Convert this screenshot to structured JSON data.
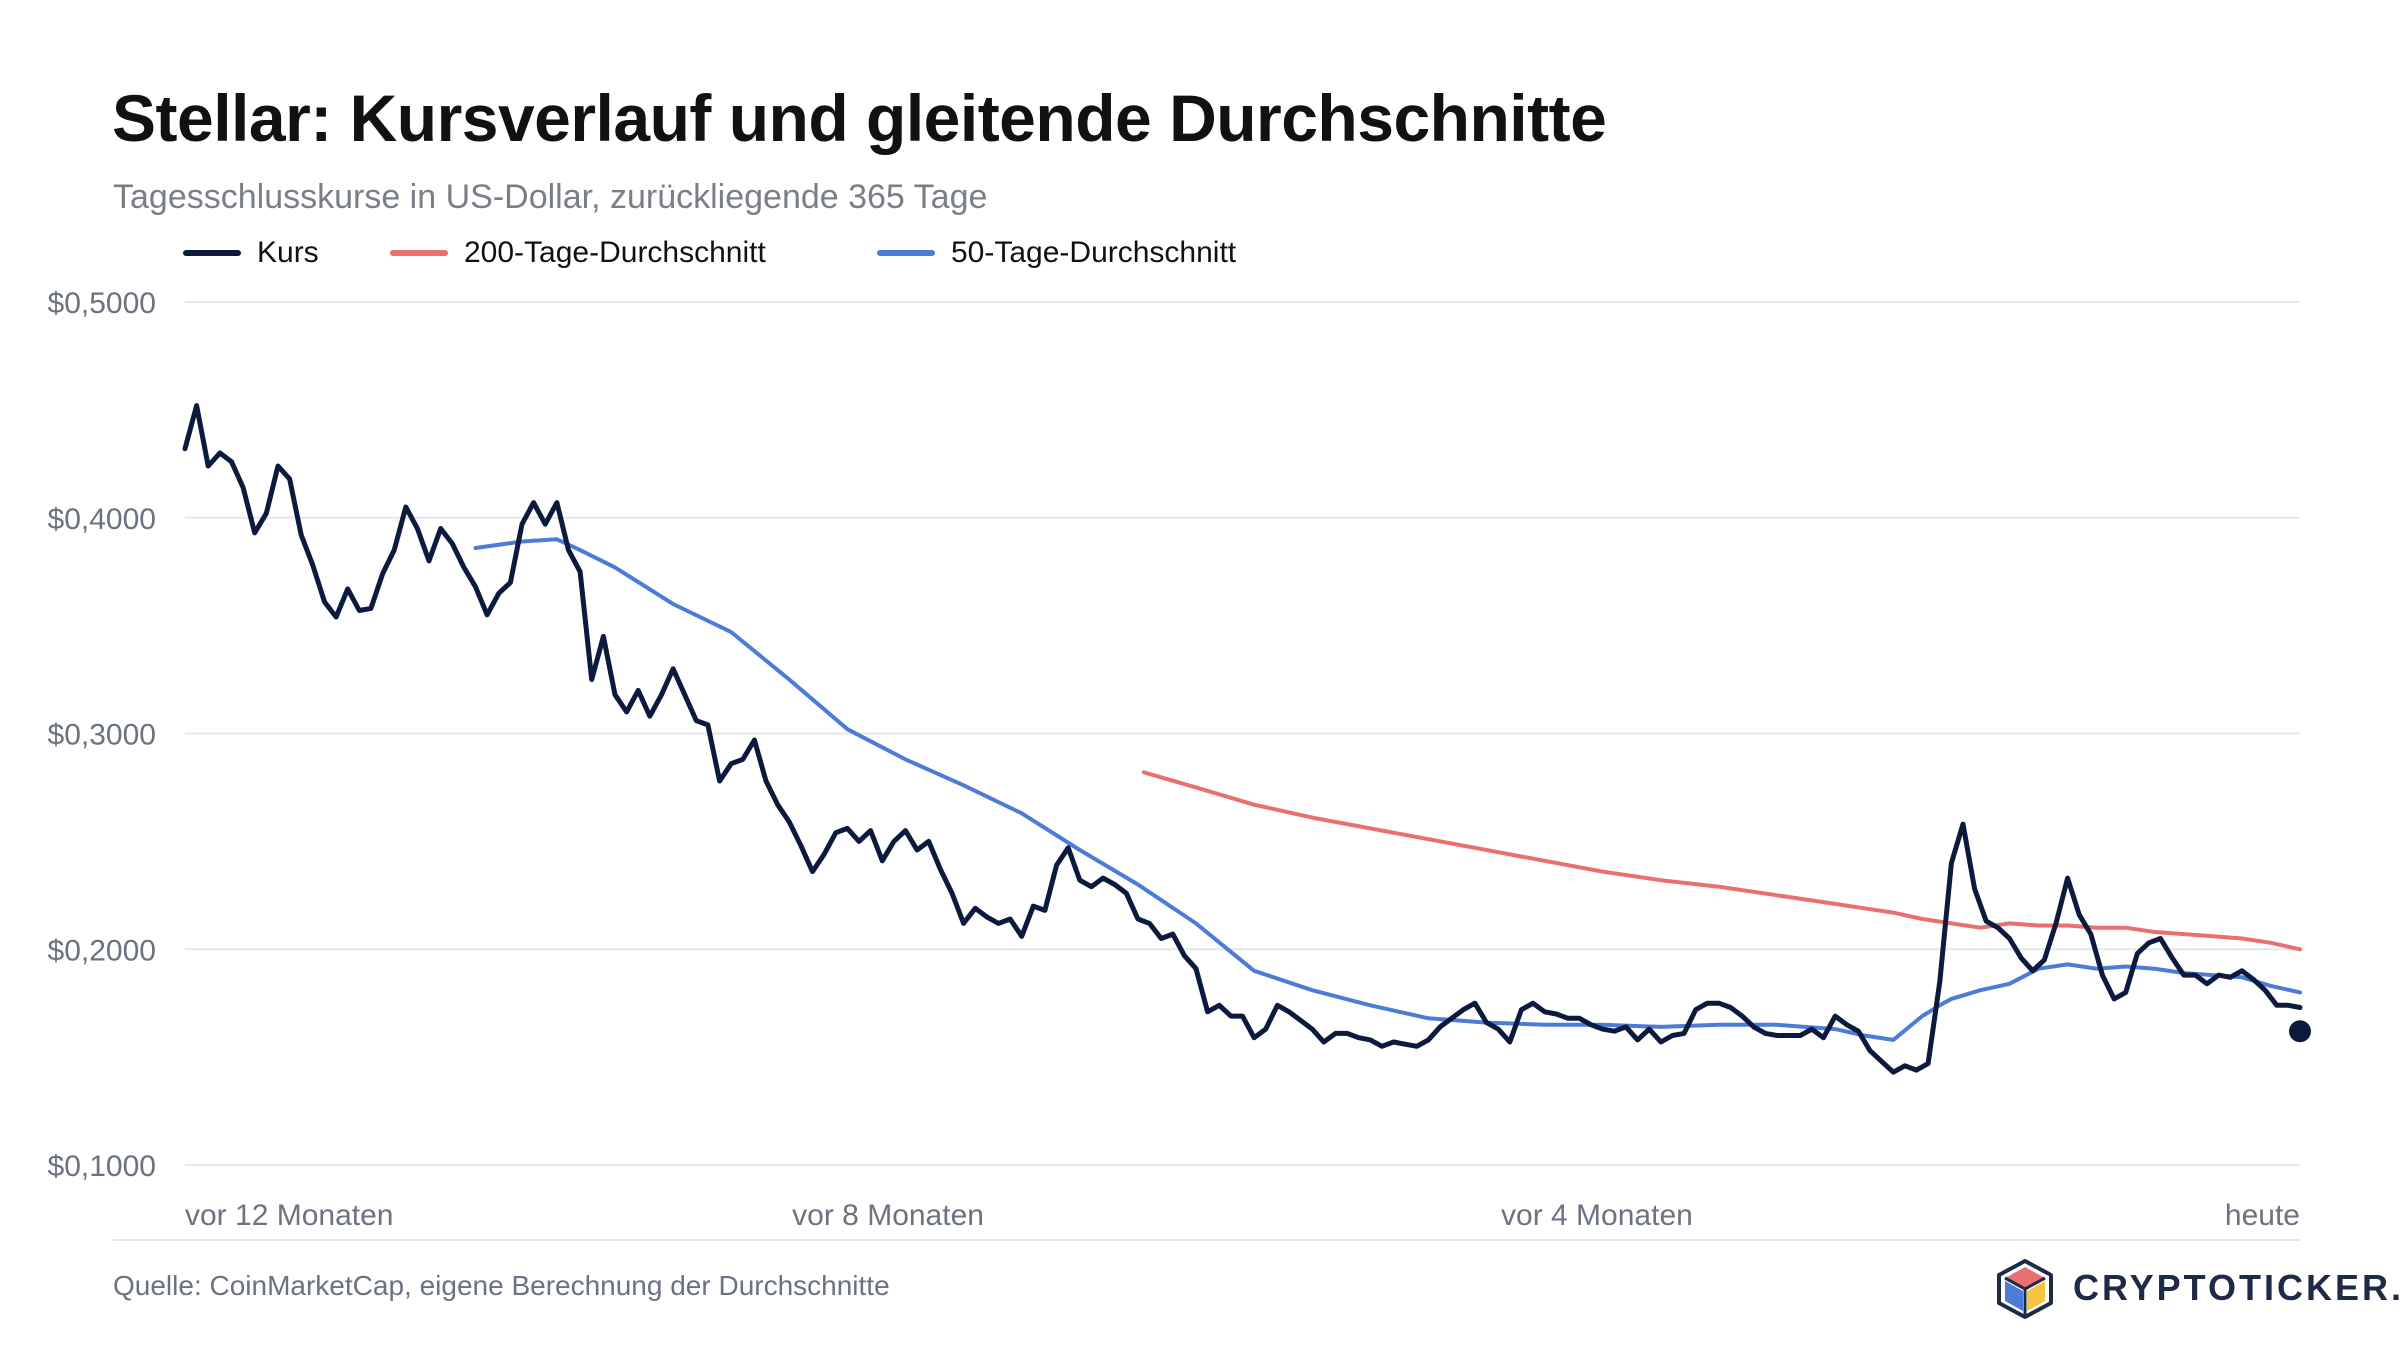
{
  "header": {
    "title": "Stellar: Kursverlauf und gleitende Durchschnitte",
    "subtitle": "Tagesschlusskurse in US-Dollar, zurückliegende 365 Tage"
  },
  "footer": {
    "source": "Quelle: CoinMarketCap, eigene Berechnung der Durchschnitte",
    "brand": "CRYPTOTICKER.IO"
  },
  "colors": {
    "price": "#0c1a3d",
    "ma200": "#e8716f",
    "ma50": "#4c7bd8",
    "grid": "#e5e7eb",
    "axis_text": "#6b7280"
  },
  "chart_data": {
    "type": "line",
    "x": {
      "label": "",
      "range": [
        "vor 12 Monaten",
        "heute"
      ],
      "ticks": [
        "vor 12 Monaten",
        "vor 8 Monaten",
        "vor 4 Monaten",
        "heute"
      ],
      "tick_days_ago": [
        364,
        243,
        121,
        0
      ]
    },
    "y": {
      "label": "",
      "range": [
        0.1,
        0.5
      ],
      "ticks": [
        "$0,1000",
        "$0,2000",
        "$0,3000",
        "$0,4000",
        "$0,5000"
      ],
      "tick_values": [
        0.1,
        0.2,
        0.3,
        0.4,
        0.5
      ]
    },
    "grid": true,
    "legend_position": "top-left",
    "series": [
      {
        "name": "Kurs",
        "color": "#0c1a3d",
        "x_days_ago": [
          364,
          362,
          360,
          358,
          356,
          354,
          352,
          350,
          348,
          346,
          344,
          342,
          340,
          338,
          336,
          334,
          332,
          330,
          328,
          326,
          324,
          322,
          320,
          318,
          316,
          314,
          312,
          310,
          308,
          306,
          304,
          302,
          300,
          298,
          296,
          294,
          292,
          290,
          288,
          286,
          284,
          282,
          280,
          278,
          276,
          274,
          272,
          270,
          268,
          266,
          264,
          262,
          260,
          258,
          256,
          254,
          252,
          250,
          248,
          246,
          244,
          242,
          240,
          238,
          236,
          234,
          232,
          230,
          228,
          226,
          224,
          222,
          220,
          218,
          216,
          214,
          212,
          210,
          208,
          206,
          204,
          202,
          200,
          198,
          196,
          194,
          192,
          190,
          188,
          186,
          184,
          182,
          180,
          178,
          176,
          174,
          172,
          170,
          168,
          166,
          164,
          162,
          160,
          158,
          156,
          154,
          152,
          150,
          148,
          146,
          144,
          142,
          140,
          138,
          136,
          134,
          132,
          130,
          128,
          126,
          124,
          122,
          120,
          118,
          116,
          114,
          112,
          110,
          108,
          106,
          104,
          102,
          100,
          98,
          96,
          94,
          92,
          90,
          88,
          86,
          84,
          82,
          80,
          78,
          76,
          74,
          72,
          70,
          68,
          66,
          64,
          62,
          60,
          58,
          56,
          54,
          52,
          50,
          48,
          46,
          44,
          42,
          40,
          38,
          36,
          34,
          32,
          30,
          28,
          26,
          24,
          22,
          20,
          18,
          16,
          14,
          12,
          10,
          8,
          6,
          4,
          2,
          0
        ],
        "values": [
          0.432,
          0.452,
          0.424,
          0.43,
          0.426,
          0.414,
          0.393,
          0.402,
          0.424,
          0.418,
          0.392,
          0.378,
          0.361,
          0.354,
          0.367,
          0.357,
          0.358,
          0.374,
          0.385,
          0.405,
          0.395,
          0.38,
          0.395,
          0.388,
          0.377,
          0.368,
          0.355,
          0.365,
          0.37,
          0.397,
          0.407,
          0.397,
          0.407,
          0.385,
          0.375,
          0.325,
          0.345,
          0.318,
          0.31,
          0.32,
          0.308,
          0.318,
          0.33,
          0.318,
          0.306,
          0.304,
          0.278,
          0.286,
          0.288,
          0.297,
          0.278,
          0.267,
          0.259,
          0.248,
          0.236,
          0.244,
          0.254,
          0.256,
          0.25,
          0.255,
          0.241,
          0.25,
          0.255,
          0.246,
          0.25,
          0.237,
          0.226,
          0.212,
          0.219,
          0.215,
          0.212,
          0.214,
          0.206,
          0.22,
          0.218,
          0.239,
          0.247,
          0.232,
          0.229,
          0.233,
          0.23,
          0.226,
          0.214,
          0.212,
          0.205,
          0.207,
          0.197,
          0.191,
          0.171,
          0.174,
          0.169,
          0.169,
          0.159,
          0.163,
          0.174,
          0.171,
          0.167,
          0.163,
          0.157,
          0.161,
          0.161,
          0.159,
          0.158,
          0.155,
          0.157,
          0.156,
          0.155,
          0.158,
          0.164,
          0.168,
          0.172,
          0.175,
          0.166,
          0.163,
          0.157,
          0.172,
          0.175,
          0.171,
          0.17,
          0.168,
          0.168,
          0.165,
          0.163,
          0.162,
          0.164,
          0.158,
          0.163,
          0.157,
          0.16,
          0.161,
          0.172,
          0.175,
          0.175,
          0.173,
          0.169,
          0.164,
          0.161,
          0.16,
          0.16,
          0.16,
          0.163,
          0.159,
          0.169,
          0.165,
          0.162,
          0.153,
          0.148,
          0.143,
          0.146,
          0.144,
          0.147,
          0.185,
          0.24,
          0.258,
          0.228,
          0.213,
          0.21,
          0.205,
          0.196,
          0.19,
          0.195,
          0.212,
          0.233,
          0.216,
          0.207,
          0.188,
          0.177,
          0.18,
          0.198,
          0.203,
          0.205,
          0.196,
          0.188,
          0.188,
          0.184,
          0.188,
          0.187,
          0.19,
          0.186,
          0.181,
          0.174,
          0.174,
          0.173,
          0.174,
          0.17,
          0.162
        ]
      },
      {
        "name": "200-Tage-Durchschnitt",
        "color": "#e8716f",
        "x_days_ago": [
          199,
          190,
          180,
          170,
          160,
          150,
          140,
          130,
          120,
          110,
          100,
          90,
          80,
          75,
          70,
          65,
          60,
          55,
          50,
          45,
          40,
          35,
          30,
          25,
          20,
          15,
          10,
          5,
          0
        ],
        "values": [
          0.282,
          0.275,
          0.267,
          0.261,
          0.256,
          0.251,
          0.246,
          0.241,
          0.236,
          0.232,
          0.229,
          0.225,
          0.221,
          0.219,
          0.217,
          0.214,
          0.212,
          0.21,
          0.212,
          0.211,
          0.211,
          0.21,
          0.21,
          0.208,
          0.207,
          0.206,
          0.205,
          0.203,
          0.2
        ]
      },
      {
        "name": "50-Tage-Durchschnitt",
        "color": "#4c7bd8",
        "x_days_ago": [
          314,
          306,
          300,
          296,
          290,
          280,
          270,
          260,
          250,
          240,
          230,
          220,
          210,
          200,
          190,
          180,
          170,
          160,
          150,
          140,
          130,
          120,
          110,
          100,
          90,
          80,
          75,
          70,
          65,
          62,
          60,
          55,
          50,
          45,
          40,
          35,
          30,
          25,
          20,
          15,
          10,
          5,
          0
        ],
        "values": [
          0.386,
          0.389,
          0.39,
          0.385,
          0.377,
          0.36,
          0.347,
          0.325,
          0.302,
          0.288,
          0.276,
          0.263,
          0.246,
          0.23,
          0.212,
          0.19,
          0.181,
          0.174,
          0.168,
          0.166,
          0.165,
          0.165,
          0.164,
          0.165,
          0.165,
          0.163,
          0.16,
          0.158,
          0.169,
          0.174,
          0.177,
          0.181,
          0.184,
          0.191,
          0.193,
          0.191,
          0.192,
          0.191,
          0.189,
          0.188,
          0.187,
          0.183,
          0.18
        ]
      }
    ]
  }
}
